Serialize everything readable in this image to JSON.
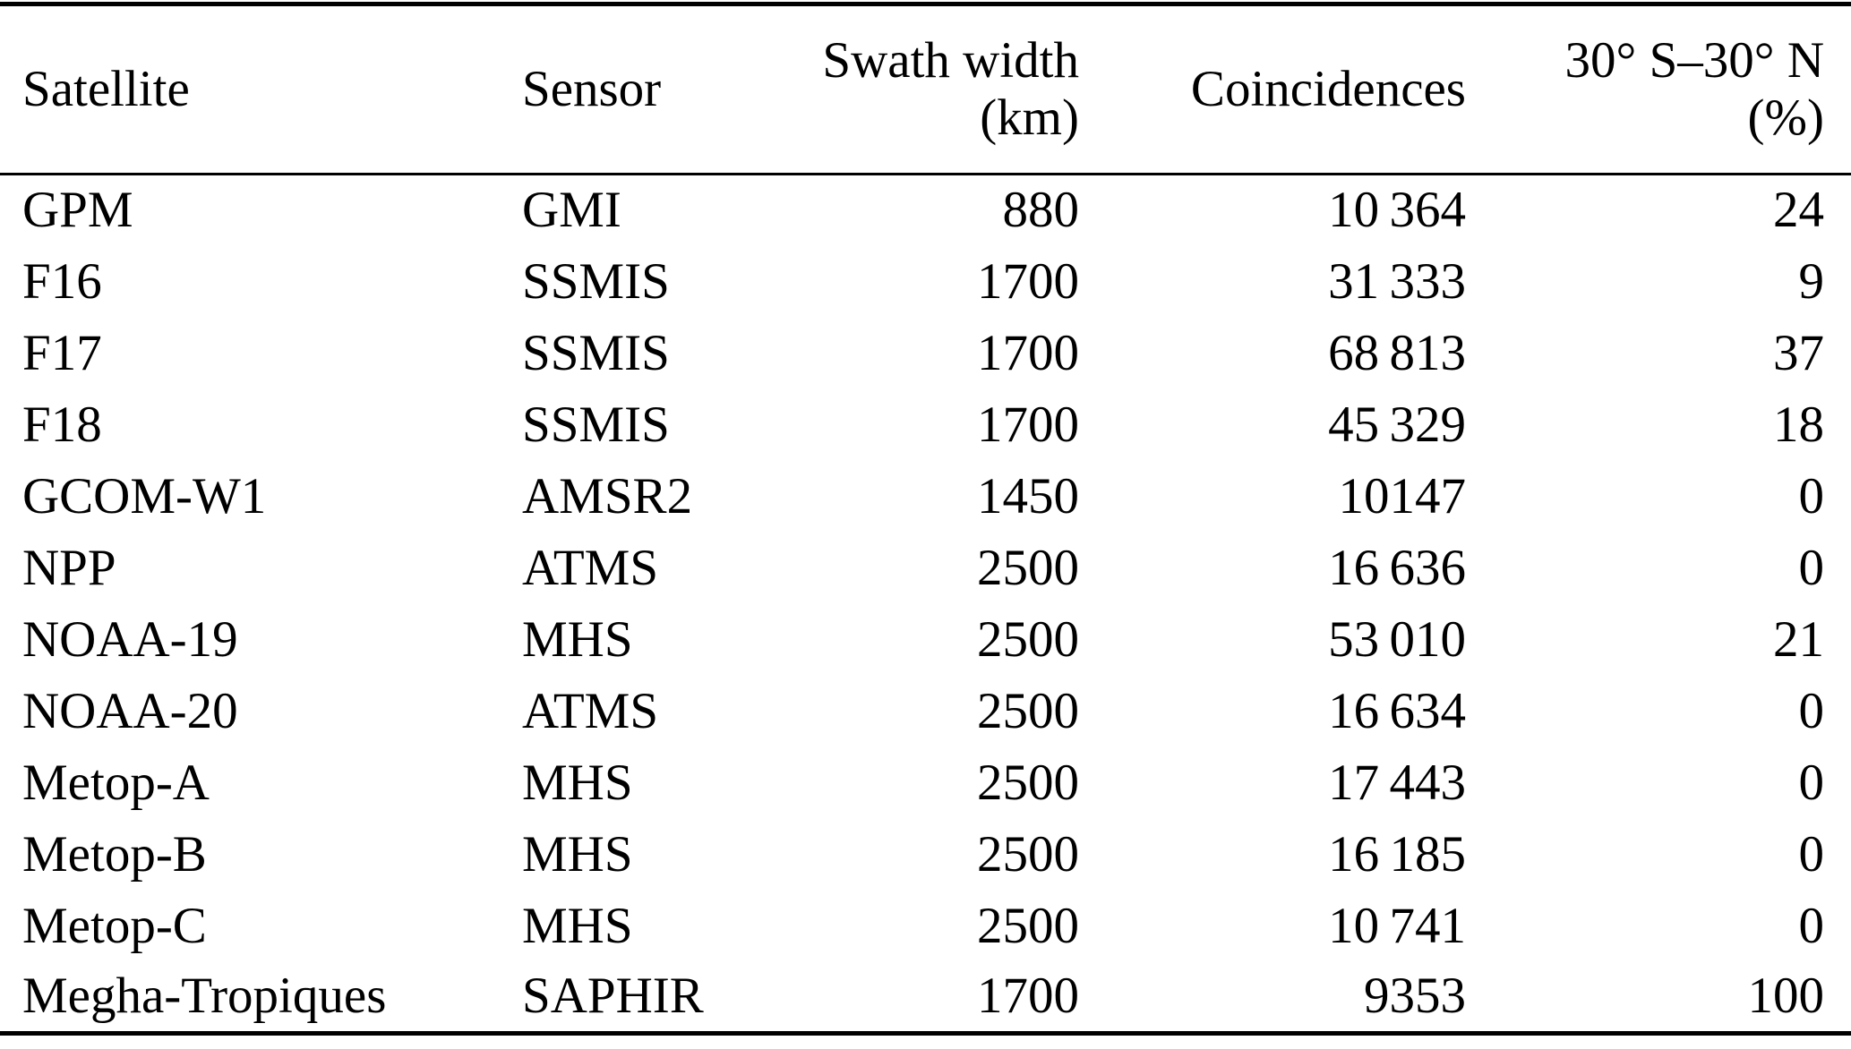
{
  "table": {
    "columns": [
      {
        "label": "Satellite",
        "label2": ""
      },
      {
        "label": "Sensor",
        "label2": ""
      },
      {
        "label": "Swath width",
        "label2": "(km)"
      },
      {
        "label": "Coincidences",
        "label2": ""
      },
      {
        "label": "30° S–30° N",
        "label2": "(%)"
      }
    ],
    "rows": [
      {
        "satellite": "GPM",
        "sensor": "GMI",
        "swath": "880",
        "coincidences": "10 364",
        "pct": "24"
      },
      {
        "satellite": "F16",
        "sensor": "SSMIS",
        "swath": "1700",
        "coincidences": "31 333",
        "pct": "9"
      },
      {
        "satellite": "F17",
        "sensor": "SSMIS",
        "swath": "1700",
        "coincidences": "68 813",
        "pct": "37"
      },
      {
        "satellite": "F18",
        "sensor": "SSMIS",
        "swath": "1700",
        "coincidences": "45 329",
        "pct": "18"
      },
      {
        "satellite": "GCOM-W1",
        "sensor": "AMSR2",
        "swath": "1450",
        "coincidences": "10147",
        "pct": "0"
      },
      {
        "satellite": "NPP",
        "sensor": "ATMS",
        "swath": "2500",
        "coincidences": "16 636",
        "pct": "0"
      },
      {
        "satellite": "NOAA-19",
        "sensor": "MHS",
        "swath": "2500",
        "coincidences": "53 010",
        "pct": "21"
      },
      {
        "satellite": "NOAA-20",
        "sensor": "ATMS",
        "swath": "2500",
        "coincidences": "16 634",
        "pct": "0"
      },
      {
        "satellite": "Metop-A",
        "sensor": "MHS",
        "swath": "2500",
        "coincidences": "17 443",
        "pct": "0"
      },
      {
        "satellite": "Metop-B",
        "sensor": "MHS",
        "swath": "2500",
        "coincidences": "16 185",
        "pct": "0"
      },
      {
        "satellite": "Metop-C",
        "sensor": "MHS",
        "swath": "2500",
        "coincidences": "10 741",
        "pct": "0"
      },
      {
        "satellite": "Megha-Tropiques",
        "sensor": "SAPHIR",
        "swath": "1700",
        "coincidences": "9353",
        "pct": "100"
      }
    ],
    "text_color": "#000000",
    "background_color": "#ffffff"
  }
}
